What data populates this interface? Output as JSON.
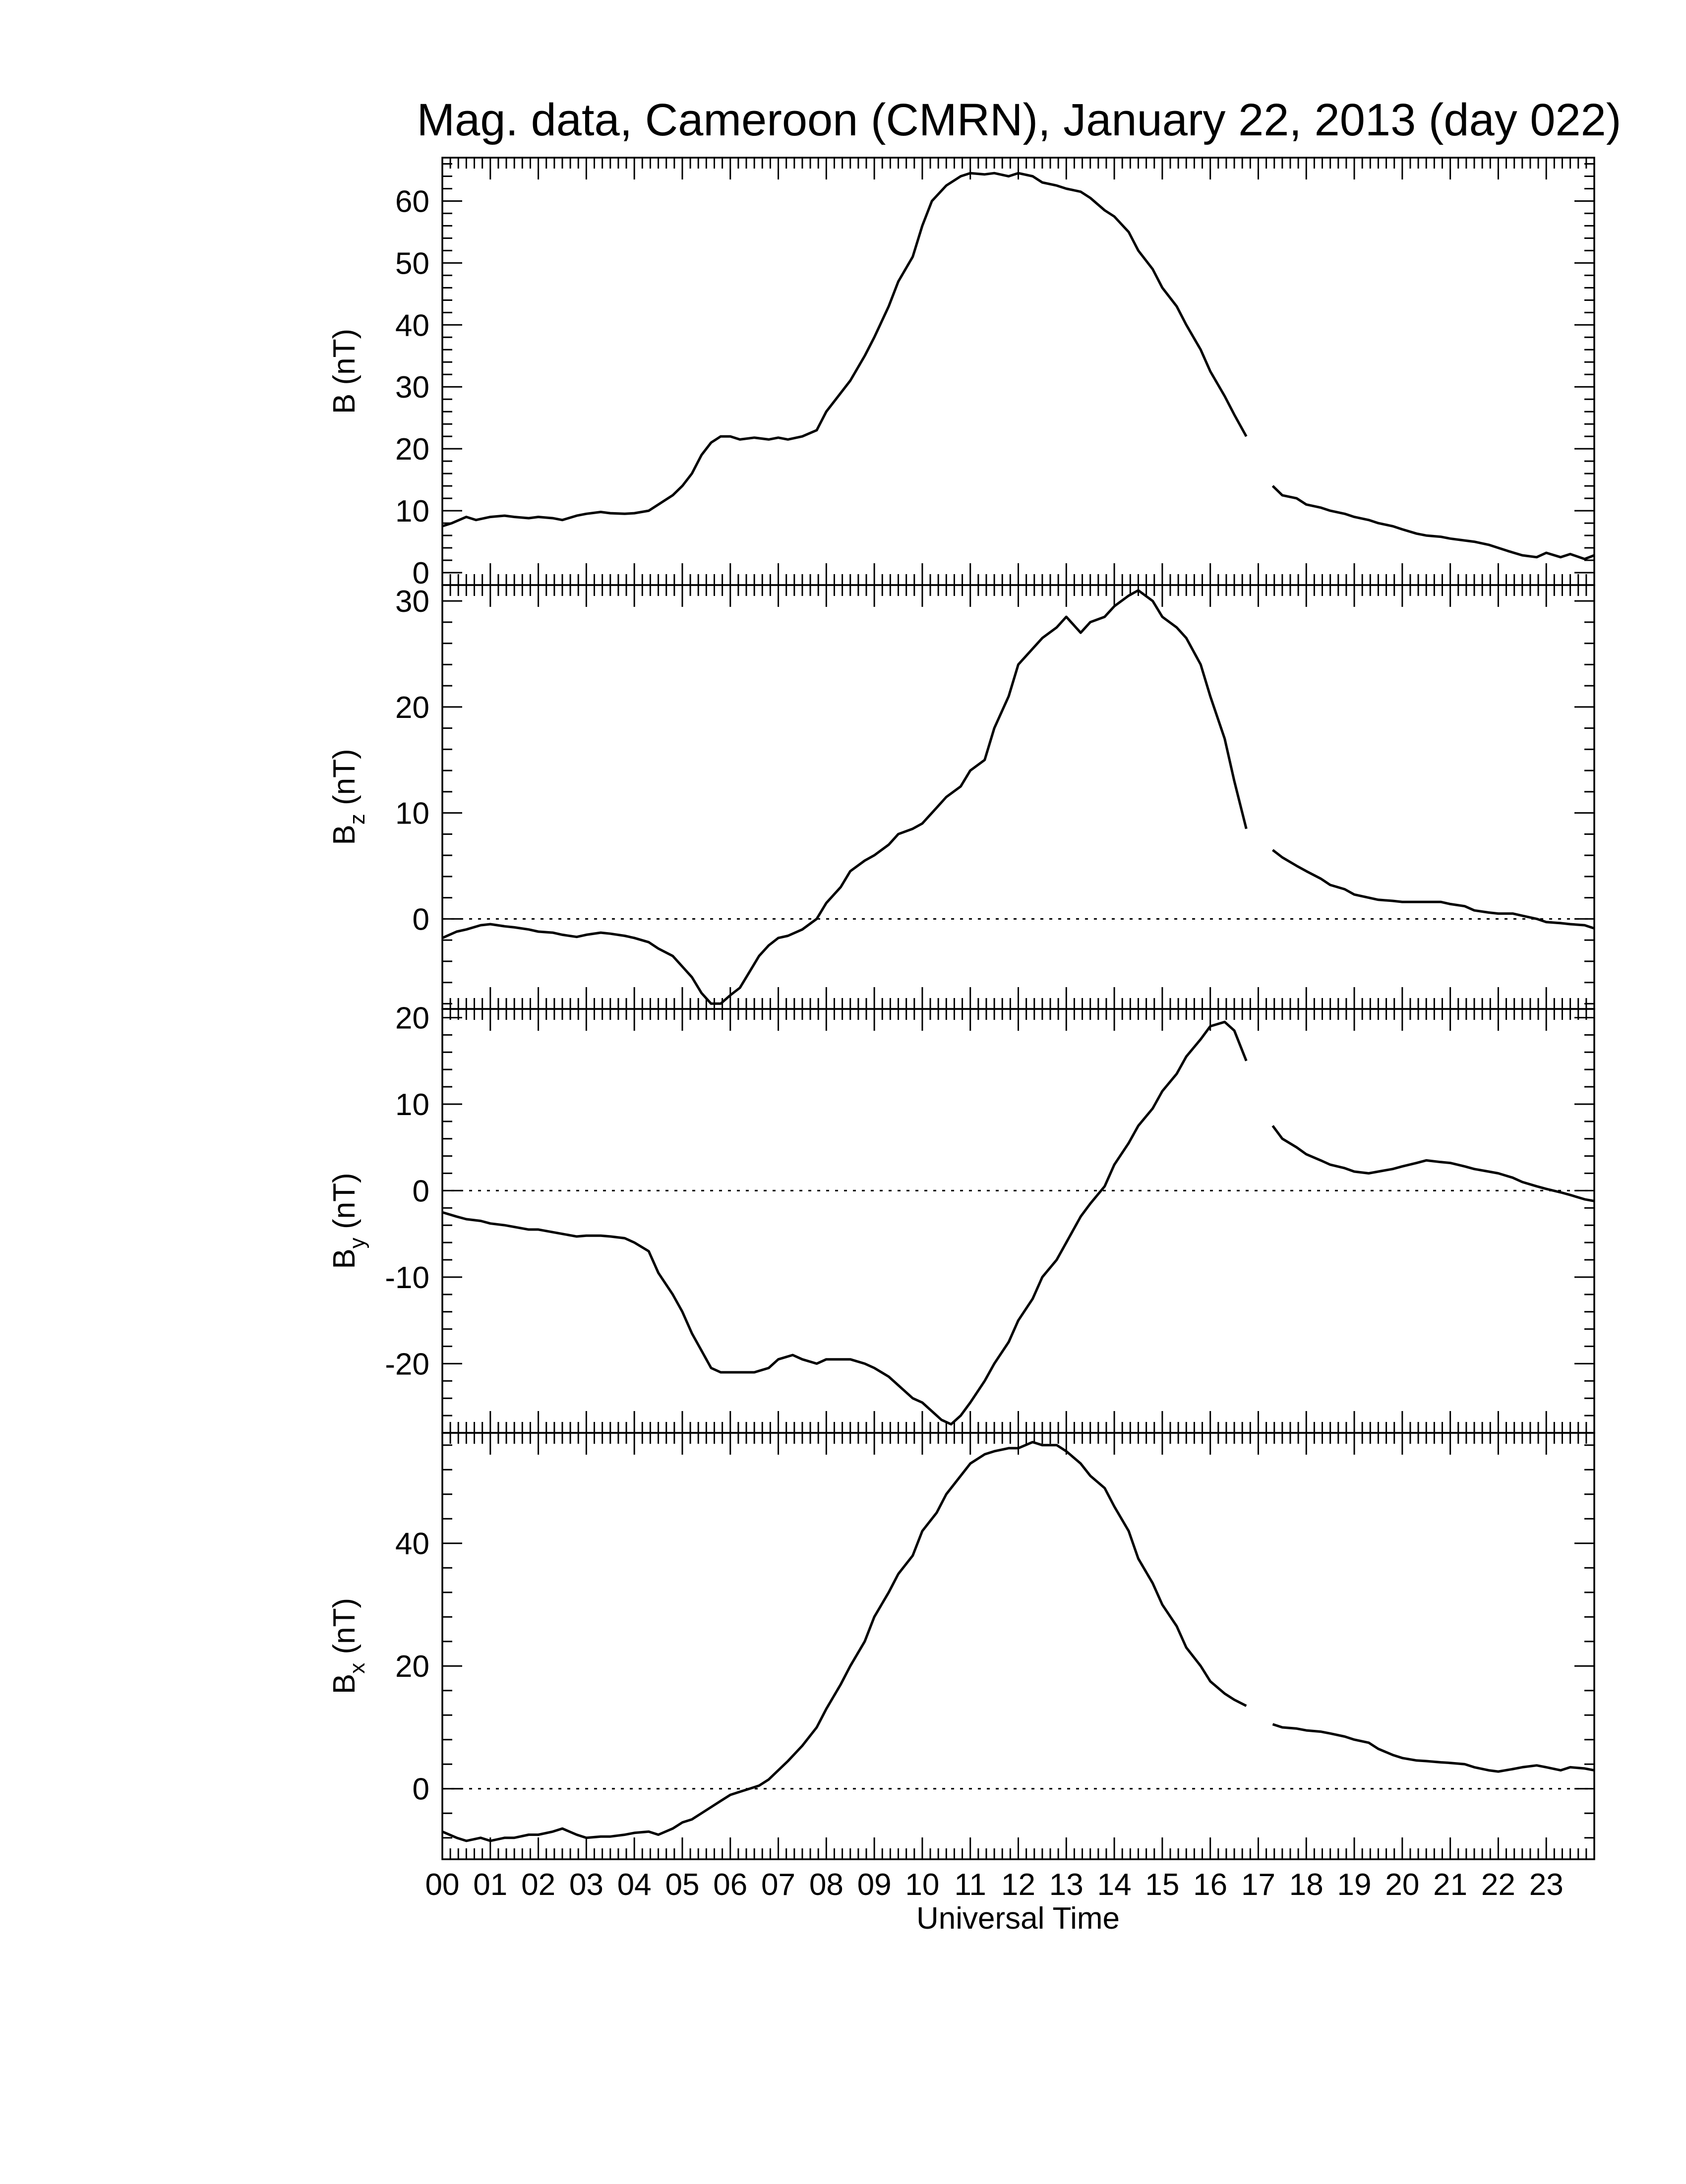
{
  "chart_data": {
    "type": "line",
    "title": "Mag. data, Cameroon (CMRN), January 22, 2013 (day 022)",
    "xlabel": "Universal Time",
    "xlim": [
      0,
      24
    ],
    "x_tick_labels": [
      "00",
      "01",
      "02",
      "03",
      "04",
      "05",
      "06",
      "07",
      "08",
      "09",
      "10",
      "11",
      "12",
      "13",
      "14",
      "15",
      "16",
      "17",
      "18",
      "19",
      "20",
      "21",
      "22",
      "23"
    ],
    "data_gap_hours": [
      16.75,
      17.3
    ],
    "panels": [
      {
        "id": "B",
        "ylabel": "B (nT)",
        "ylabel_base": "B",
        "ylabel_sub": "",
        "ylabel_unit": " (nT)",
        "ylim": [
          -2,
          67
        ],
        "yticks": [
          0,
          10,
          20,
          30,
          40,
          50,
          60
        ],
        "zero_line": false,
        "series": [
          {
            "x": [
              0.0,
              0.2,
              0.5,
              0.7,
              1.0,
              1.3,
              1.5,
              1.8,
              2.0,
              2.3,
              2.5,
              2.8,
              3.0,
              3.3,
              3.5,
              3.8,
              4.0,
              4.3,
              4.5,
              4.8,
              5.0,
              5.2,
              5.4,
              5.6,
              5.8,
              6.0,
              6.2,
              6.5,
              6.8,
              7.0,
              7.2,
              7.5,
              7.8,
              8.0,
              8.2,
              8.5,
              8.8,
              9.0,
              9.3,
              9.5,
              9.8,
              10.0,
              10.2,
              10.5,
              10.8,
              11.0,
              11.3,
              11.5,
              11.8,
              12.0,
              12.3,
              12.5,
              12.8,
              13.0,
              13.3,
              13.5,
              13.8,
              14.0,
              14.3,
              14.5,
              14.8,
              15.0,
              15.3,
              15.5,
              15.8,
              16.0,
              16.3,
              16.5,
              16.75
            ],
            "y": [
              7.5,
              8.0,
              9.0,
              8.5,
              9.0,
              9.2,
              9.0,
              8.8,
              9.0,
              8.8,
              8.5,
              9.2,
              9.5,
              9.8,
              9.6,
              9.5,
              9.6,
              10.0,
              11.0,
              12.5,
              14.0,
              16.0,
              19.0,
              21.0,
              22.0,
              22.0,
              21.5,
              21.8,
              21.5,
              21.8,
              21.5,
              22.0,
              23.0,
              26.0,
              28.0,
              31.0,
              35.0,
              38.0,
              43.0,
              47.0,
              51.0,
              56.0,
              60.0,
              62.5,
              64.0,
              64.5,
              64.3,
              64.5,
              64.0,
              64.5,
              64.0,
              63.0,
              62.5,
              62.0,
              61.5,
              60.5,
              58.5,
              57.5,
              55.0,
              52.0,
              49.0,
              46.0,
              43.0,
              40.0,
              36.0,
              32.5,
              28.5,
              25.5,
              22.0
            ]
          },
          {
            "x": [
              17.3,
              17.5,
              17.8,
              18.0,
              18.3,
              18.5,
              18.8,
              19.0,
              19.3,
              19.5,
              19.8,
              20.0,
              20.3,
              20.5,
              20.8,
              21.0,
              21.3,
              21.5,
              21.8,
              22.0,
              22.2,
              22.5,
              22.8,
              23.0,
              23.3,
              23.5,
              23.8,
              24.0
            ],
            "y": [
              14.0,
              12.5,
              12.0,
              11.0,
              10.5,
              10.0,
              9.5,
              9.0,
              8.5,
              8.0,
              7.5,
              7.0,
              6.3,
              6.0,
              5.8,
              5.5,
              5.2,
              5.0,
              4.5,
              4.0,
              3.5,
              2.8,
              2.5,
              3.2,
              2.5,
              3.0,
              2.2,
              2.8
            ]
          }
        ]
      },
      {
        "id": "Bz",
        "ylabel": "Bz (nT)",
        "ylabel_base": "B",
        "ylabel_sub": "z",
        "ylabel_unit": " (nT)",
        "ylim": [
          -8.5,
          31.5
        ],
        "yticks": [
          0,
          10,
          20,
          30
        ],
        "zero_line": true,
        "series": [
          {
            "x": [
              0.0,
              0.3,
              0.5,
              0.8,
              1.0,
              1.3,
              1.5,
              1.8,
              2.0,
              2.3,
              2.5,
              2.8,
              3.0,
              3.3,
              3.5,
              3.8,
              4.0,
              4.3,
              4.5,
              4.8,
              5.0,
              5.2,
              5.4,
              5.6,
              5.8,
              6.0,
              6.2,
              6.4,
              6.6,
              6.8,
              7.0,
              7.2,
              7.5,
              7.8,
              8.0,
              8.3,
              8.5,
              8.8,
              9.0,
              9.3,
              9.5,
              9.8,
              10.0,
              10.3,
              10.5,
              10.8,
              11.0,
              11.3,
              11.5,
              11.8,
              12.0,
              12.3,
              12.5,
              12.8,
              13.0,
              13.3,
              13.5,
              13.8,
              14.0,
              14.3,
              14.5,
              14.8,
              15.0,
              15.3,
              15.5,
              15.8,
              16.0,
              16.3,
              16.5,
              16.75
            ],
            "y": [
              -1.8,
              -1.2,
              -1.0,
              -0.6,
              -0.5,
              -0.7,
              -0.8,
              -1.0,
              -1.2,
              -1.3,
              -1.5,
              -1.7,
              -1.5,
              -1.3,
              -1.4,
              -1.6,
              -1.8,
              -2.2,
              -2.8,
              -3.5,
              -4.5,
              -5.5,
              -7.0,
              -8.0,
              -8.0,
              -7.2,
              -6.5,
              -5.0,
              -3.5,
              -2.5,
              -1.8,
              -1.6,
              -1.0,
              0.0,
              1.5,
              3.0,
              4.5,
              5.5,
              6.0,
              7.0,
              8.0,
              8.5,
              9.0,
              10.5,
              11.5,
              12.5,
              14.0,
              15.0,
              18.0,
              21.0,
              24.0,
              25.5,
              26.5,
              27.5,
              28.5,
              27.0,
              28.0,
              28.5,
              29.5,
              30.5,
              31.0,
              30.0,
              28.5,
              27.5,
              26.5,
              24.0,
              21.0,
              17.0,
              13.0,
              8.5
            ]
          },
          {
            "x": [
              17.3,
              17.5,
              17.8,
              18.0,
              18.3,
              18.5,
              18.8,
              19.0,
              19.3,
              19.5,
              19.8,
              20.0,
              20.3,
              20.5,
              20.8,
              21.0,
              21.3,
              21.5,
              21.8,
              22.0,
              22.3,
              22.5,
              22.8,
              23.0,
              23.3,
              23.5,
              23.8,
              24.0
            ],
            "y": [
              6.5,
              5.8,
              5.0,
              4.5,
              3.8,
              3.2,
              2.8,
              2.3,
              2.0,
              1.8,
              1.7,
              1.6,
              1.6,
              1.6,
              1.6,
              1.4,
              1.2,
              0.8,
              0.6,
              0.5,
              0.5,
              0.3,
              0.0,
              -0.3,
              -0.4,
              -0.5,
              -0.6,
              -0.9
            ]
          }
        ]
      },
      {
        "id": "By",
        "ylabel": "By (nT)",
        "ylabel_base": "B",
        "ylabel_sub": "y",
        "ylabel_unit": " (nT)",
        "ylim": [
          -28,
          21
        ],
        "yticks": [
          -20,
          -10,
          0,
          10,
          20
        ],
        "zero_line": true,
        "series": [
          {
            "x": [
              0.0,
              0.3,
              0.5,
              0.8,
              1.0,
              1.3,
              1.5,
              1.8,
              2.0,
              2.3,
              2.5,
              2.8,
              3.0,
              3.3,
              3.5,
              3.8,
              4.0,
              4.3,
              4.5,
              4.8,
              5.0,
              5.2,
              5.4,
              5.6,
              5.8,
              6.0,
              6.2,
              6.5,
              6.8,
              7.0,
              7.3,
              7.5,
              7.8,
              8.0,
              8.3,
              8.5,
              8.8,
              9.0,
              9.3,
              9.5,
              9.8,
              10.0,
              10.2,
              10.4,
              10.6,
              10.8,
              11.0,
              11.3,
              11.5,
              11.8,
              12.0,
              12.3,
              12.5,
              12.8,
              13.0,
              13.3,
              13.5,
              13.8,
              14.0,
              14.3,
              14.5,
              14.8,
              15.0,
              15.3,
              15.5,
              15.8,
              16.0,
              16.3,
              16.5,
              16.75
            ],
            "y": [
              -2.5,
              -3.0,
              -3.3,
              -3.5,
              -3.8,
              -4.0,
              -4.2,
              -4.5,
              -4.5,
              -4.8,
              -5.0,
              -5.3,
              -5.2,
              -5.2,
              -5.3,
              -5.5,
              -6.0,
              -7.0,
              -9.5,
              -12.0,
              -14.0,
              -16.5,
              -18.5,
              -20.5,
              -21.0,
              -21.0,
              -21.0,
              -21.0,
              -20.5,
              -19.5,
              -19.0,
              -19.5,
              -20.0,
              -19.5,
              -19.5,
              -19.5,
              -20.0,
              -20.5,
              -21.5,
              -22.5,
              -24.0,
              -24.5,
              -25.5,
              -26.5,
              -27.0,
              -26.0,
              -24.5,
              -22.0,
              -20.0,
              -17.5,
              -15.0,
              -12.5,
              -10.0,
              -8.0,
              -6.0,
              -3.0,
              -1.5,
              0.5,
              3.0,
              5.5,
              7.5,
              9.5,
              11.5,
              13.5,
              15.5,
              17.5,
              19.0,
              19.5,
              18.5,
              15.0
            ]
          },
          {
            "x": [
              17.3,
              17.5,
              17.8,
              18.0,
              18.3,
              18.5,
              18.8,
              19.0,
              19.3,
              19.5,
              19.8,
              20.0,
              20.3,
              20.5,
              20.8,
              21.0,
              21.3,
              21.5,
              21.8,
              22.0,
              22.3,
              22.5,
              22.8,
              23.0,
              23.3,
              23.5,
              23.8,
              24.0
            ],
            "y": [
              7.5,
              6.0,
              5.0,
              4.2,
              3.5,
              3.0,
              2.6,
              2.2,
              2.0,
              2.2,
              2.5,
              2.8,
              3.2,
              3.5,
              3.3,
              3.2,
              2.8,
              2.5,
              2.2,
              2.0,
              1.5,
              1.0,
              0.5,
              0.2,
              -0.2,
              -0.5,
              -1.0,
              -1.2
            ]
          }
        ]
      },
      {
        "id": "Bx",
        "ylabel": "Bx (nT)",
        "ylabel_base": "B",
        "ylabel_sub": "x",
        "ylabel_unit": " (nT)",
        "ylim": [
          -11.5,
          58
        ],
        "yticks": [
          0,
          20,
          40
        ],
        "zero_line": true,
        "series": [
          {
            "x": [
              0.0,
              0.3,
              0.5,
              0.8,
              1.0,
              1.3,
              1.5,
              1.8,
              2.0,
              2.3,
              2.5,
              2.8,
              3.0,
              3.3,
              3.5,
              3.8,
              4.0,
              4.3,
              4.5,
              4.8,
              5.0,
              5.2,
              5.4,
              5.6,
              5.8,
              6.0,
              6.2,
              6.4,
              6.6,
              6.8,
              7.0,
              7.2,
              7.5,
              7.8,
              8.0,
              8.3,
              8.5,
              8.8,
              9.0,
              9.3,
              9.5,
              9.8,
              10.0,
              10.3,
              10.5,
              10.8,
              11.0,
              11.3,
              11.5,
              11.8,
              12.0,
              12.3,
              12.5,
              12.8,
              13.0,
              13.3,
              13.5,
              13.8,
              14.0,
              14.3,
              14.5,
              14.8,
              15.0,
              15.3,
              15.5,
              15.8,
              16.0,
              16.3,
              16.5,
              16.75
            ],
            "y": [
              -7.0,
              -8.0,
              -8.5,
              -8.0,
              -8.5,
              -8.0,
              -8.0,
              -7.5,
              -7.5,
              -7.0,
              -6.5,
              -7.5,
              -8.0,
              -7.8,
              -7.8,
              -7.5,
              -7.2,
              -7.0,
              -7.5,
              -6.5,
              -5.5,
              -5.0,
              -4.0,
              -3.0,
              -2.0,
              -1.0,
              -0.5,
              0.0,
              0.5,
              1.5,
              3.0,
              4.5,
              7.0,
              10.0,
              13.0,
              17.0,
              20.0,
              24.0,
              28.0,
              32.0,
              35.0,
              38.0,
              42.0,
              45.0,
              48.0,
              51.0,
              53.0,
              54.5,
              55.0,
              55.5,
              55.5,
              56.5,
              56.0,
              56.0,
              55.0,
              53.0,
              51.0,
              49.0,
              46.0,
              42.0,
              37.5,
              33.5,
              30.0,
              26.5,
              23.0,
              20.0,
              17.5,
              15.5,
              14.5,
              13.5
            ]
          },
          {
            "x": [
              17.3,
              17.5,
              17.8,
              18.0,
              18.3,
              18.5,
              18.8,
              19.0,
              19.3,
              19.5,
              19.8,
              20.0,
              20.3,
              20.5,
              20.8,
              21.0,
              21.3,
              21.5,
              21.8,
              22.0,
              22.3,
              22.5,
              22.8,
              23.0,
              23.3,
              23.5,
              23.8,
              24.0
            ],
            "y": [
              10.5,
              10.0,
              9.8,
              9.5,
              9.3,
              9.0,
              8.5,
              8.0,
              7.5,
              6.5,
              5.5,
              5.0,
              4.6,
              4.5,
              4.3,
              4.2,
              4.0,
              3.5,
              3.0,
              2.8,
              3.2,
              3.5,
              3.8,
              3.5,
              3.0,
              3.5,
              3.3,
              3.0
            ]
          }
        ]
      }
    ]
  }
}
